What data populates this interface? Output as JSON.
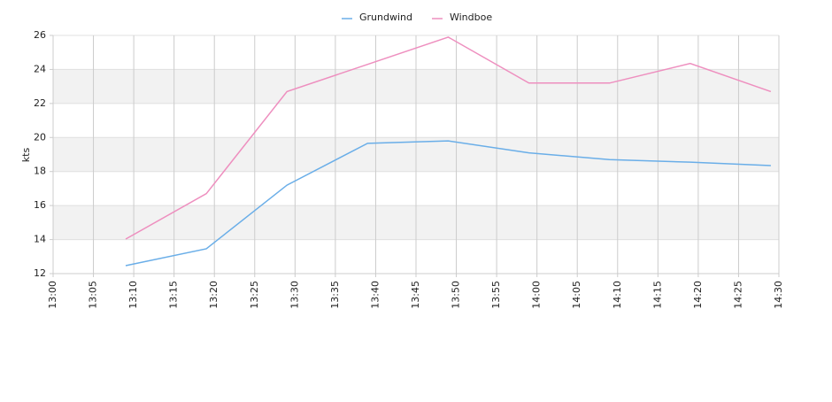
{
  "chart_data": {
    "type": "line",
    "y_label": "kts",
    "x": [
      "13:09",
      "13:19",
      "13:29",
      "13:39",
      "13:49",
      "13:59",
      "14:09",
      "14:19",
      "14:29"
    ],
    "series": [
      {
        "name": "Grundwind",
        "color": "#6aaee8",
        "values": [
          12.47,
          13.46,
          17.2,
          19.66,
          19.8,
          19.1,
          18.7,
          18.55,
          18.35
        ]
      },
      {
        "name": "Windboe",
        "color": "#ee8fbf",
        "values": [
          14.03,
          16.7,
          22.7,
          24.3,
          25.9,
          23.2,
          23.2,
          24.35,
          22.7
        ]
      }
    ],
    "xlim": [
      "13:00",
      "14:30"
    ],
    "xticks": [
      "13:00",
      "13:05",
      "13:10",
      "13:15",
      "13:20",
      "13:25",
      "13:30",
      "13:35",
      "13:40",
      "13:45",
      "13:50",
      "13:55",
      "14:00",
      "14:05",
      "14:10",
      "14:15",
      "14:20",
      "14:25",
      "14:30"
    ],
    "ylim": [
      12,
      26
    ],
    "yticks": [
      12,
      14,
      16,
      18,
      20,
      22,
      24,
      26
    ],
    "grid": true,
    "legend": "top"
  }
}
